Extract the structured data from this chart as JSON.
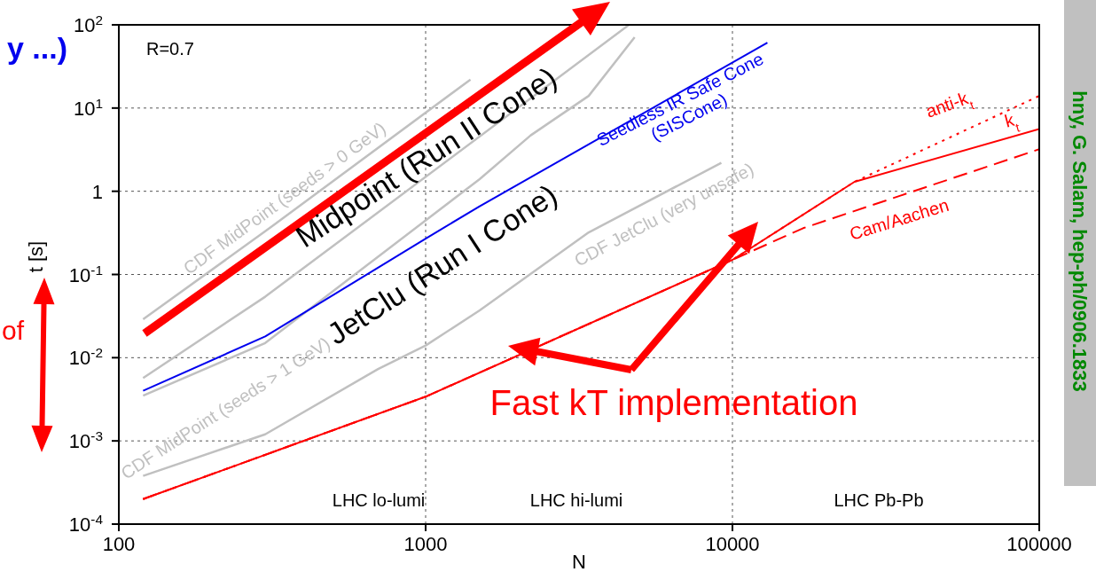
{
  "chart_data": {
    "type": "line",
    "xlabel": "N",
    "ylabel": "t [s]",
    "log": "xy",
    "grid": true,
    "legend": false,
    "marker": "none",
    "xlim": [
      100,
      100000
    ],
    "xticks": [
      100,
      1000,
      10000,
      100000
    ],
    "ylim": [
      0.0001,
      100
    ],
    "yticks": [
      {
        "value": 0.0001,
        "label": "10$^{-4}$"
      },
      {
        "value": 0.001,
        "label": "10$^{-3}$"
      },
      {
        "value": 0.01,
        "label": "10$^{-2}$"
      },
      {
        "value": 0.1,
        "label": "10$^{-1}$"
      },
      1,
      {
        "value": 10,
        "label": "10$^{1}$"
      },
      {
        "value": 100,
        "label": "10$^{2}$"
      }
    ],
    "series": [
      {
        "name": "CDF MidPoint (seeds > 0 GeV)",
        "color": "#c0c0c0",
        "x": [
          120,
          300,
          1400
        ],
        "values": [
          0.029,
          0.33,
          22
        ]
      },
      {
        "color": "#c0c0c0",
        "x": [
          120,
          300,
          4600
        ],
        "values": [
          0.0057,
          0.054,
          100
        ]
      },
      {
        "name": "CDF MidPoint (seeds > 1 GeV)",
        "color": "#c0c0c0",
        "x": [
          120,
          300,
          1500,
          2200,
          3400,
          4800
        ],
        "values": [
          0.0035,
          0.015,
          1.4,
          4.7,
          14,
          71
        ]
      },
      {
        "name": "CDF JetClu (very unsafe)",
        "color": "#c0c0c0",
        "x": [
          120,
          300,
          700,
          1000,
          1500,
          3400,
          9200
        ],
        "values": [
          0.00038,
          0.0012,
          0.0073,
          0.014,
          0.037,
          0.32,
          2.2
        ]
      },
      {
        "name": "Seedless IR Safe Cone (SISCone)",
        "color": "#0000ee",
        "x": [
          120,
          300,
          1000,
          1500,
          13000
        ],
        "values": [
          0.004,
          0.018,
          0.27,
          0.66,
          61
        ]
      },
      {
        "name": "k$_{t}$",
        "color": "#ff0000",
        "line_style": "solid",
        "x": [
          120,
          1000,
          10000,
          25000,
          100000
        ],
        "values": [
          0.0002,
          0.0034,
          0.15,
          1.3,
          5.6
        ]
      },
      {
        "name": "anti-k$_{t}$",
        "color": "#ff0000",
        "line_style": "dotted",
        "x": [
          120,
          1000,
          10000,
          25000,
          100000
        ],
        "values": [
          0.0002,
          0.0034,
          0.15,
          1.3,
          14
        ]
      },
      {
        "name": "Cam/Aachen",
        "color": "#ff0000",
        "line_style": "dashed",
        "x": [
          120,
          1000,
          10000,
          17000,
          100000
        ],
        "values": [
          0.0002,
          0.0034,
          0.15,
          0.36,
          3.2
        ]
      }
    ],
    "annotations": [
      "R=0.7",
      "Midpoint (Run II Cone)",
      "JetClu (Run I Cone)",
      "Fast kT implementation",
      "LHC lo-lumi",
      "LHC hi-lumi",
      "LHC Pb-Pb",
      "y ...)",
      "of",
      "hny, G. Salam, hep-ph/0906.1833"
    ]
  }
}
